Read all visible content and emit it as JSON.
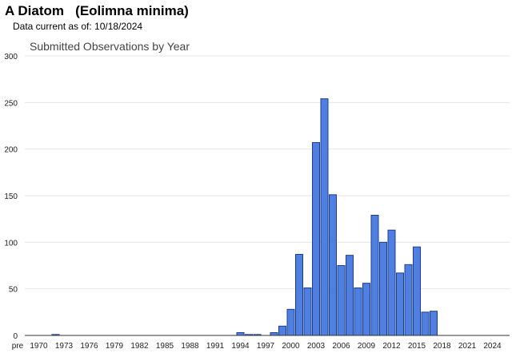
{
  "header": {
    "title": "A Diatom   (Eolimna minima)",
    "subtitle": "Data current as of: 10/18/2024"
  },
  "chart_data": {
    "type": "bar",
    "title": "Submitted Observations by Year",
    "categories": [
      "pre 1970",
      "1970",
      "1971",
      "1972",
      "1973",
      "1974",
      "1975",
      "1976",
      "1977",
      "1978",
      "1979",
      "1980",
      "1981",
      "1982",
      "1983",
      "1984",
      "1985",
      "1986",
      "1987",
      "1988",
      "1989",
      "1990",
      "1991",
      "1992",
      "1993",
      "1994",
      "1995",
      "1996",
      "1997",
      "1998",
      "1999",
      "2000",
      "2001",
      "2002",
      "2003",
      "2004",
      "2005",
      "2006",
      "2007",
      "2008",
      "2009",
      "2010",
      "2011",
      "2012",
      "2013",
      "2014",
      "2015",
      "2016",
      "2017",
      "2018",
      "2019",
      "2020",
      "2021",
      "2022",
      "2023",
      "2024"
    ],
    "values": [
      0,
      0,
      0,
      1,
      0,
      0,
      0,
      0,
      0,
      0,
      0,
      0,
      0,
      0,
      0,
      0,
      0,
      0,
      0,
      0,
      0,
      0,
      0,
      0,
      0,
      3,
      1,
      1,
      0,
      3,
      10,
      28,
      87,
      51,
      207,
      254,
      151,
      75,
      86,
      51,
      56,
      129,
      100,
      113,
      67,
      76,
      95,
      25,
      26,
      0,
      0,
      0,
      0,
      0,
      0,
      0
    ],
    "x_tick_labels": [
      "pre",
      "1970",
      "1973",
      "1976",
      "1979",
      "1982",
      "1985",
      "1988",
      "1991",
      "1994",
      "1997",
      "2000",
      "2003",
      "2006",
      "2009",
      "2012",
      "2015",
      "2018",
      "2021",
      "2024"
    ],
    "y_ticks": [
      0,
      50,
      100,
      150,
      200,
      250,
      300
    ],
    "ylim": [
      0,
      300
    ],
    "colors": {
      "bar_fill": "#4f7fe0",
      "bar_stroke": "#1c3f8c",
      "grid": "#e6e6e6"
    }
  }
}
